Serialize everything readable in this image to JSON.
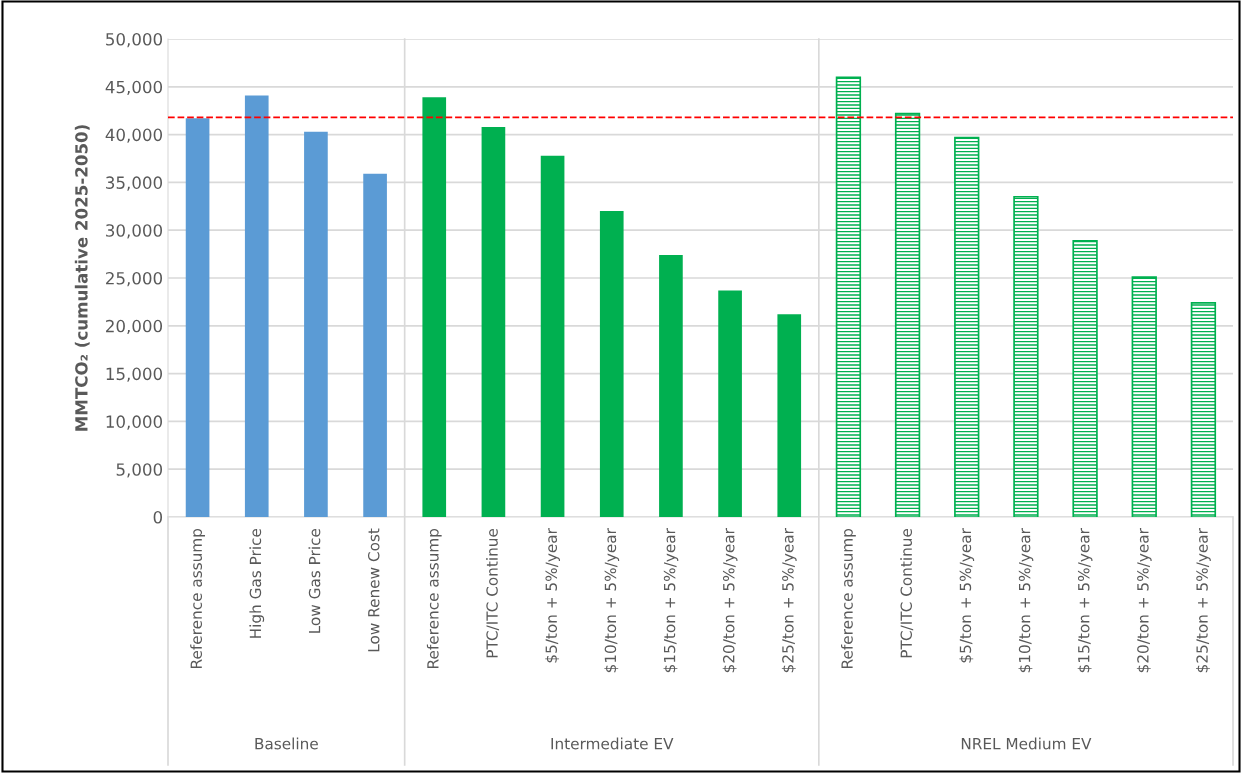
{
  "chart_data": {
    "type": "bar",
    "ylabel": "MMTCO₂ (cumulative 2025-2050)",
    "categories": [
      "Reference assump",
      "High Gas Price",
      "Low Gas Price",
      "Low Renew Cost",
      "Reference assump",
      "PTC/ITC Continue",
      "$5/ton + 5%/year",
      "$10/ton + 5%/year",
      "$15/ton + 5%/year",
      "$20/ton + 5%/year",
      "$25/ton + 5%/year",
      "Reference assump",
      "PTC/ITC Continue",
      "$5/ton + 5%/year",
      "$10/ton + 5%/year",
      "$15/ton + 5%/year",
      "$20/ton + 5%/year",
      "$25/ton + 5%/year"
    ],
    "series": [
      {
        "color": "#5b9bd5",
        "values": [
          41700,
          44100,
          40300,
          35900,
          null,
          null,
          null,
          null,
          null,
          null,
          null,
          null,
          null,
          null,
          null,
          null,
          null,
          null
        ]
      },
      {
        "color": "#00b050",
        "values": [
          null,
          null,
          null,
          null,
          43900,
          40800,
          37800,
          32000,
          27400,
          23700,
          21200,
          null,
          null,
          null,
          null,
          null,
          null,
          null
        ]
      },
      {
        "color": "#00b050",
        "values": [
          null,
          null,
          null,
          null,
          null,
          null,
          null,
          null,
          null,
          null,
          null,
          46000,
          42200,
          39700,
          33500,
          28900,
          25100,
          22400
        ]
      }
    ],
    "ylim": [
      0,
      50000
    ],
    "yticks": [
      {
        "value": 0,
        "label": "0"
      },
      {
        "value": 5000,
        "label": "5,000"
      },
      {
        "value": 10000,
        "label": "10,000"
      },
      {
        "value": 15000,
        "label": "15,000"
      },
      {
        "value": 20000,
        "label": "20,000"
      },
      {
        "value": 25000,
        "label": "25,000"
      },
      {
        "value": 30000,
        "label": "30,000"
      },
      {
        "value": 35000,
        "label": "35,000"
      },
      {
        "value": 40000,
        "label": "40,000"
      },
      {
        "value": 45000,
        "label": "45,000"
      },
      {
        "value": 50000,
        "label": "50,000"
      }
    ],
    "annotations": [
      "Baseline",
      "Intermediate EV",
      "NREL Medium EV"
    ],
    "grid": "y",
    "legend": false,
    "ref_lines": [
      {
        "axis": "y",
        "value": 41800,
        "color": "#ff0000",
        "line_style": "dashed"
      }
    ]
  }
}
